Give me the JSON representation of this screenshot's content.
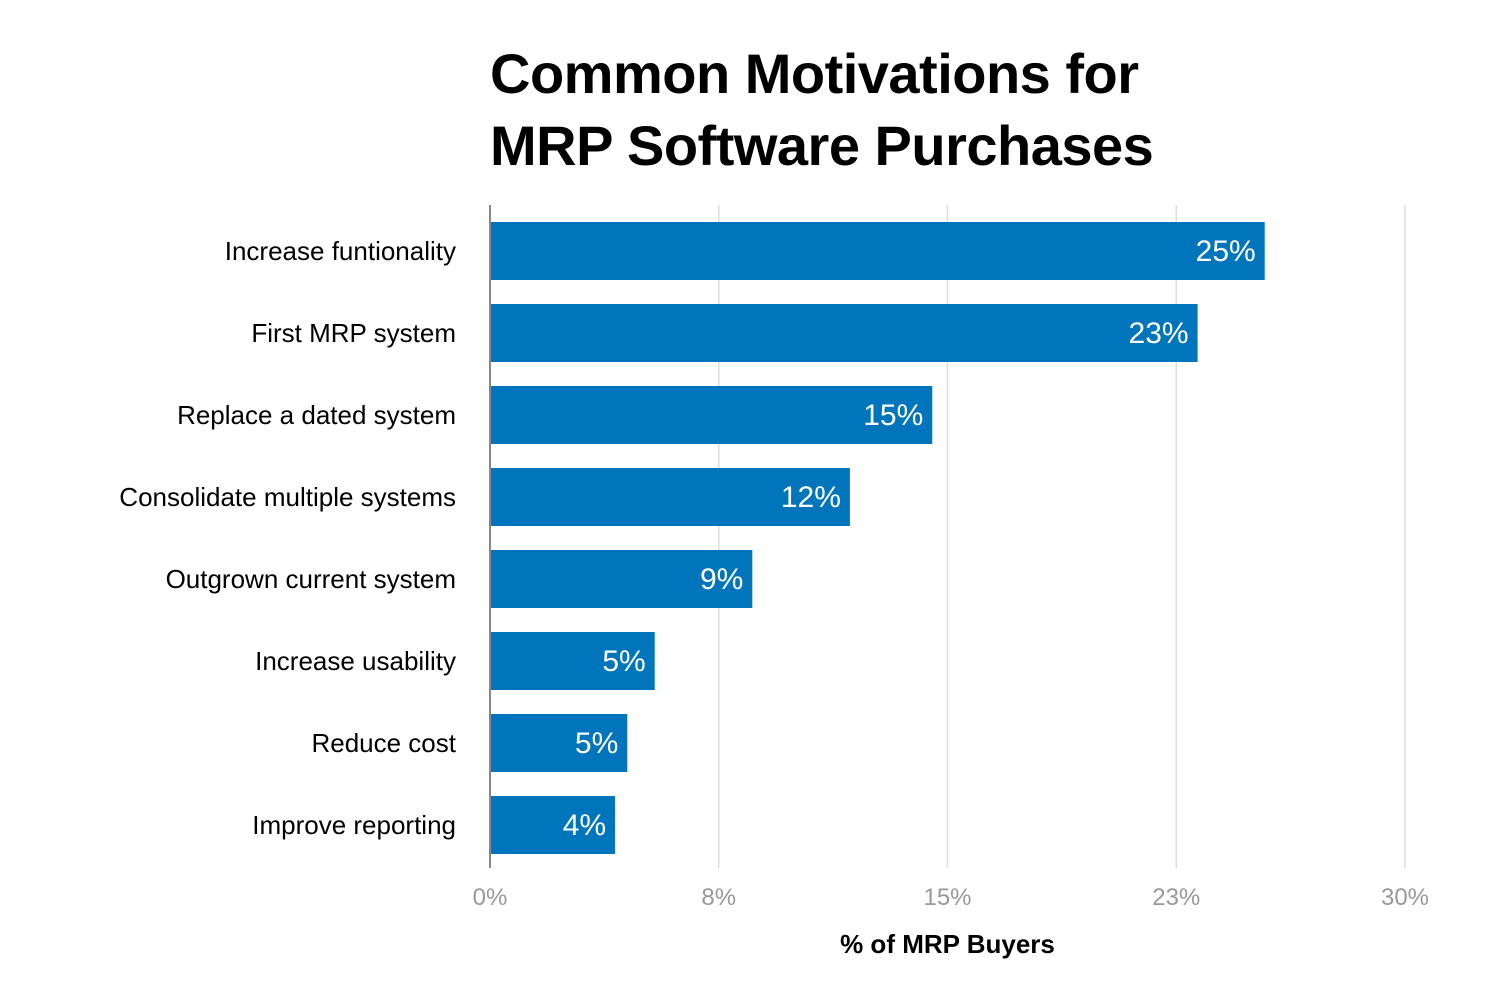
{
  "chart_data": {
    "type": "bar",
    "orientation": "horizontal",
    "title_lines": [
      "Common Motivations for",
      "MRP Software Purchases"
    ],
    "xlabel": "% of MRP Buyers",
    "ylabel": "",
    "categories": [
      "Increase funtionality",
      "First MRP system",
      "Replace a dated system",
      "Consolidate multiple systems",
      "Outgrown current system",
      "Increase usability",
      "Reduce cost",
      "Improve reporting"
    ],
    "values": [
      25.4,
      23.2,
      14.5,
      11.8,
      8.6,
      5.4,
      4.5,
      4.1
    ],
    "data_labels": [
      "25%",
      "23%",
      "15%",
      "12%",
      "9%",
      "5%",
      "5%",
      "4%"
    ],
    "xlim": [
      0,
      30
    ],
    "xticks": [
      0,
      7.5,
      15,
      22.5,
      30
    ],
    "xtick_labels": [
      "0%",
      "8%",
      "15%",
      "23%",
      "30%"
    ],
    "grid": "vertical",
    "bar_color": "#0075bc",
    "legend": "none"
  }
}
